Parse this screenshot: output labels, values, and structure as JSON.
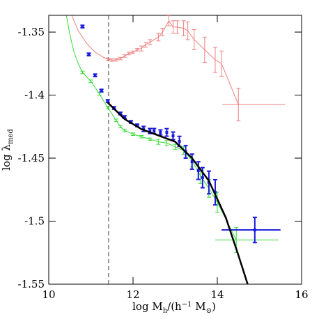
{
  "chart_data": {
    "type": "errorbar",
    "xlabel": [
      "log M",
      "h",
      "/(h",
      "−1",
      " M",
      "⊙",
      ")"
    ],
    "ylabel": [
      "log λ",
      "med"
    ],
    "xlim": [
      10,
      16
    ],
    "ylim": [
      -1.55,
      -1.3367
    ],
    "xticks": [
      10,
      12,
      14,
      16
    ],
    "yticks": [
      -1.55,
      -1.5,
      -1.45,
      -1.4,
      -1.35
    ],
    "vline": 11.42,
    "series": [
      {
        "color": "#ef7f7f",
        "line": true,
        "marker": false,
        "x": [
          10.55,
          10.7,
          10.9,
          11.1,
          11.3,
          11.4,
          11.5,
          11.6,
          11.7,
          11.8,
          11.9,
          12.0,
          12.1,
          12.2,
          12.3,
          12.4,
          12.6,
          12.7,
          12.85,
          12.95,
          13.05,
          13.2,
          13.3,
          13.45,
          13.7,
          13.95,
          14.1,
          14.5
        ],
        "values": [
          -1.337,
          -1.349,
          -1.359,
          -1.366,
          -1.37,
          -1.3715,
          -1.3722,
          -1.372,
          -1.371,
          -1.369,
          -1.367,
          -1.366,
          -1.364,
          -1.363,
          -1.36,
          -1.358,
          -1.354,
          -1.35,
          -1.341,
          -1.346,
          -1.346,
          -1.347,
          -1.349,
          -1.356,
          -1.364,
          -1.372,
          -1.375,
          -1.4075
        ],
        "yerr": [
          null,
          null,
          null,
          null,
          null,
          0.001,
          0.001,
          0.001,
          0.001,
          0.001,
          0.001,
          0.001,
          0.001,
          0.002,
          0.002,
          0.002,
          0.003,
          0.003,
          0.004,
          0.005,
          0.005,
          0.006,
          0.007,
          0.008,
          0.01,
          0.01,
          0.01,
          0.013
        ],
        "xerr": [
          null,
          null,
          null,
          null,
          null,
          null,
          null,
          null,
          null,
          null,
          null,
          null,
          null,
          null,
          null,
          null,
          null,
          null,
          null,
          null,
          null,
          null,
          null,
          null,
          null,
          null,
          null,
          [
            0.38,
            1.11
          ]
        ]
      },
      {
        "color": "#33dd33",
        "line": true,
        "marker": false,
        "x": [
          10.42,
          10.5,
          10.6,
          10.7,
          10.8,
          11.0,
          11.2,
          11.4,
          11.6,
          11.7,
          11.8,
          12.0,
          12.2,
          12.4,
          12.6,
          12.8,
          13.0,
          13.2,
          13.4,
          13.6,
          13.8,
          14.0,
          14.45
        ],
        "values": [
          -1.337,
          -1.352,
          -1.366,
          -1.375,
          -1.382,
          -1.389,
          -1.399,
          -1.41,
          -1.42,
          -1.425,
          -1.428,
          -1.431,
          -1.433,
          -1.435,
          -1.437,
          -1.438,
          -1.441,
          -1.444,
          -1.452,
          -1.464,
          -1.474,
          -1.485,
          -1.515
        ],
        "yerr": [
          null,
          null,
          null,
          null,
          0.001,
          0.001,
          0.001,
          0.001,
          0.001,
          0.001,
          0.001,
          0.001,
          0.001,
          0.001,
          0.002,
          0.002,
          0.002,
          0.003,
          0.005,
          0.006,
          0.007,
          0.008,
          0.01
        ],
        "xerr": [
          null,
          null,
          null,
          null,
          null,
          null,
          null,
          null,
          null,
          null,
          null,
          null,
          null,
          null,
          null,
          null,
          null,
          null,
          null,
          null,
          null,
          null,
          [
            0.5,
            1.0
          ]
        ]
      },
      {
        "color": "#1a1add",
        "line": false,
        "marker": true,
        "x": [
          10.8,
          10.95,
          11.1,
          11.25,
          11.4,
          11.55,
          11.7,
          11.8,
          11.95,
          12.1,
          12.25,
          12.4,
          12.5,
          12.65,
          12.8,
          12.95,
          13.1,
          13.25,
          13.4,
          13.55,
          13.65,
          13.8,
          13.95,
          14.89
        ],
        "values": [
          -1.3456,
          -1.3677,
          -1.3843,
          -1.3964,
          -1.4047,
          -1.4102,
          -1.4146,
          -1.4174,
          -1.4213,
          -1.424,
          -1.4268,
          -1.4285,
          -1.4285,
          -1.4296,
          -1.4296,
          -1.4323,
          -1.4367,
          -1.445,
          -1.4528,
          -1.4599,
          -1.4655,
          -1.4693,
          -1.4771,
          -1.507
        ],
        "yerr": [
          0.001,
          0.001,
          0.001,
          0.001,
          0.001,
          0.001,
          0.001,
          0.001,
          0.001,
          0.001,
          0.002,
          0.002,
          0.002,
          0.002,
          0.003,
          0.003,
          0.004,
          0.005,
          0.006,
          0.007,
          0.008,
          0.009,
          0.01,
          0.01
        ],
        "xerr": [
          null,
          null,
          null,
          null,
          null,
          null,
          null,
          null,
          null,
          null,
          null,
          null,
          null,
          null,
          null,
          null,
          null,
          null,
          null,
          null,
          null,
          null,
          null,
          [
            0.79,
            0.61
          ]
        ]
      },
      {
        "color": "#000000",
        "line": true,
        "marker": false,
        "width": 2.5,
        "x": [
          11.4,
          11.8,
          12.2,
          12.6,
          13.0,
          13.4,
          13.8,
          14.2,
          14.5,
          14.72
        ],
        "values": [
          -1.406,
          -1.419,
          -1.427,
          -1.432,
          -1.437,
          -1.45,
          -1.468,
          -1.497,
          -1.527,
          -1.55
        ]
      }
    ]
  }
}
